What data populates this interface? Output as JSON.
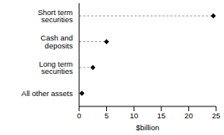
{
  "chart_data": {
    "type": "dot",
    "orientation": "horizontal",
    "categories": [
      "Short term securities",
      "Cash and deposits",
      "Long term securities",
      "All other assets"
    ],
    "values": [
      24.5,
      5,
      2.5,
      0.5
    ],
    "color": "#000000",
    "marker": "diamond",
    "line_style": "dashed",
    "xlabel": "$billion",
    "xlim": [
      0,
      25
    ],
    "xticks": [
      0,
      5,
      10,
      15,
      20,
      25
    ]
  }
}
